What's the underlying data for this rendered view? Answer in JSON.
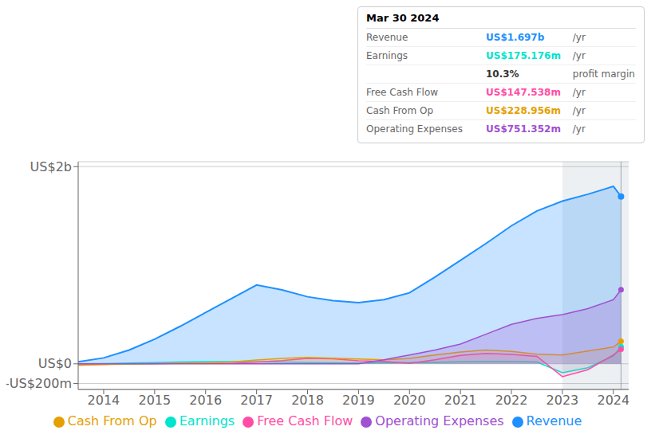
{
  "chart_data": {
    "type": "area",
    "x": [
      2013.5,
      2014.0,
      2014.5,
      2015.0,
      2015.5,
      2016.0,
      2016.5,
      2017.0,
      2017.5,
      2018.0,
      2018.5,
      2019.0,
      2019.5,
      2020.0,
      2020.5,
      2021.0,
      2021.5,
      2022.0,
      2022.5,
      2023.0,
      2023.5,
      2024.0,
      2024.15
    ],
    "series": [
      {
        "name": "Revenue",
        "color": "#1e90ff",
        "values": [
          0.02,
          0.06,
          0.14,
          0.25,
          0.38,
          0.52,
          0.66,
          0.8,
          0.75,
          0.68,
          0.64,
          0.62,
          0.65,
          0.72,
          0.88,
          1.05,
          1.22,
          1.4,
          1.55,
          1.65,
          1.72,
          1.8,
          1.697
        ]
      },
      {
        "name": "Earnings",
        "color": "#00e5cc",
        "values": [
          0.0,
          0.003,
          0.008,
          0.012,
          0.018,
          0.022,
          0.022,
          0.02,
          0.018,
          0.012,
          0.01,
          0.008,
          0.01,
          0.012,
          0.015,
          0.02,
          0.022,
          0.022,
          0.018,
          -0.09,
          -0.04,
          0.08,
          0.175
        ]
      },
      {
        "name": "Free Cash Flow",
        "color": "#ff4da6",
        "values": [
          -0.01,
          -0.005,
          0.0,
          0.003,
          0.005,
          0.006,
          0.005,
          0.018,
          0.032,
          0.055,
          0.05,
          0.03,
          0.025,
          0.005,
          0.04,
          0.085,
          0.105,
          0.095,
          0.075,
          -0.13,
          -0.06,
          0.09,
          0.148
        ]
      },
      {
        "name": "Cash From Op",
        "color": "#e5a000",
        "values": [
          -0.015,
          -0.008,
          -0.003,
          0.0,
          0.008,
          0.01,
          0.018,
          0.038,
          0.055,
          0.065,
          0.058,
          0.048,
          0.04,
          0.055,
          0.09,
          0.12,
          0.14,
          0.125,
          0.098,
          0.09,
          0.13,
          0.17,
          0.229
        ]
      },
      {
        "name": "Operating Expenses",
        "color": "#a050d0",
        "values": [
          0.0,
          0.0,
          0.0,
          0.0,
          0.0,
          0.0,
          0.0,
          0.0,
          0.0,
          0.0,
          0.0,
          0.0,
          0.04,
          0.09,
          0.14,
          0.2,
          0.3,
          0.4,
          0.46,
          0.5,
          0.56,
          0.65,
          0.751
        ]
      }
    ],
    "xlim": [
      2013.5,
      2024.3
    ],
    "ylim": [
      -0.26,
      2.05
    ],
    "xticks": [
      2014,
      2015,
      2016,
      2017,
      2018,
      2019,
      2020,
      2021,
      2022,
      2023,
      2024
    ],
    "yticks": [
      {
        "value": -0.2,
        "label": "-US$200m"
      },
      {
        "value": 0,
        "label": "US$0"
      },
      {
        "value": 2.0,
        "label": "US$2b"
      }
    ],
    "grid": true,
    "legend": "bottom",
    "highlight": {
      "x0": 2023.0,
      "line_x": 2024.15
    },
    "annotation": {
      "title": "Mar 30 2024",
      "rows": [
        {
          "label": "Revenue",
          "value": "US$1.697b",
          "suffix": " /yr",
          "color": "#1e90ff"
        },
        {
          "label": "Earnings",
          "value": "US$175.176m",
          "suffix": " /yr",
          "color": "#00e5cc"
        },
        {
          "value": "10.3%",
          "suffix": " profit margin"
        },
        {
          "label": "Free Cash Flow",
          "value": "US$147.538m",
          "suffix": " /yr",
          "color": "#ff4da6"
        },
        {
          "label": "Cash From Op",
          "value": "US$228.956m",
          "suffix": " /yr",
          "color": "#e5a000"
        },
        {
          "label": "Operating Expenses",
          "value": "US$751.352m",
          "suffix": " /yr",
          "color": "#a050d0"
        }
      ]
    }
  }
}
